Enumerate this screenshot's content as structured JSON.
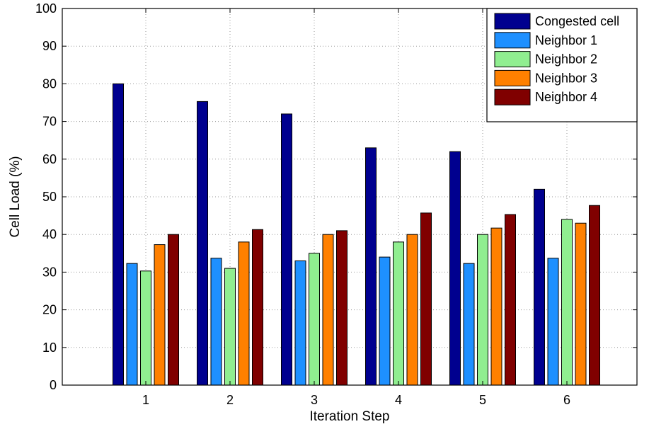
{
  "chart_data": {
    "type": "bar",
    "title": "",
    "xlabel": "Iteration Step",
    "ylabel": "Cell Load (%)",
    "categories": [
      "1",
      "2",
      "3",
      "4",
      "5",
      "6"
    ],
    "ylim": [
      0,
      100
    ],
    "yticks": [
      0,
      10,
      20,
      30,
      40,
      50,
      60,
      70,
      80,
      90,
      100
    ],
    "grid": true,
    "legend_position": "top-right",
    "series": [
      {
        "name": "Congested cell",
        "color": "#00008f",
        "values": [
          80,
          75.3,
          72,
          63,
          62,
          52
        ]
      },
      {
        "name": "Neighbor 1",
        "color": "#1e90ff",
        "values": [
          32.3,
          33.7,
          33,
          34,
          32.3,
          33.7
        ]
      },
      {
        "name": "Neighbor 2",
        "color": "#90ee90",
        "values": [
          30.3,
          31,
          35,
          38,
          40,
          44
        ]
      },
      {
        "name": "Neighbor 3",
        "color": "#ff8000",
        "values": [
          37.3,
          38,
          40,
          40,
          41.7,
          43
        ]
      },
      {
        "name": "Neighbor 4",
        "color": "#800000",
        "values": [
          40,
          41.3,
          41,
          45.7,
          45.3,
          47.7
        ]
      }
    ]
  }
}
